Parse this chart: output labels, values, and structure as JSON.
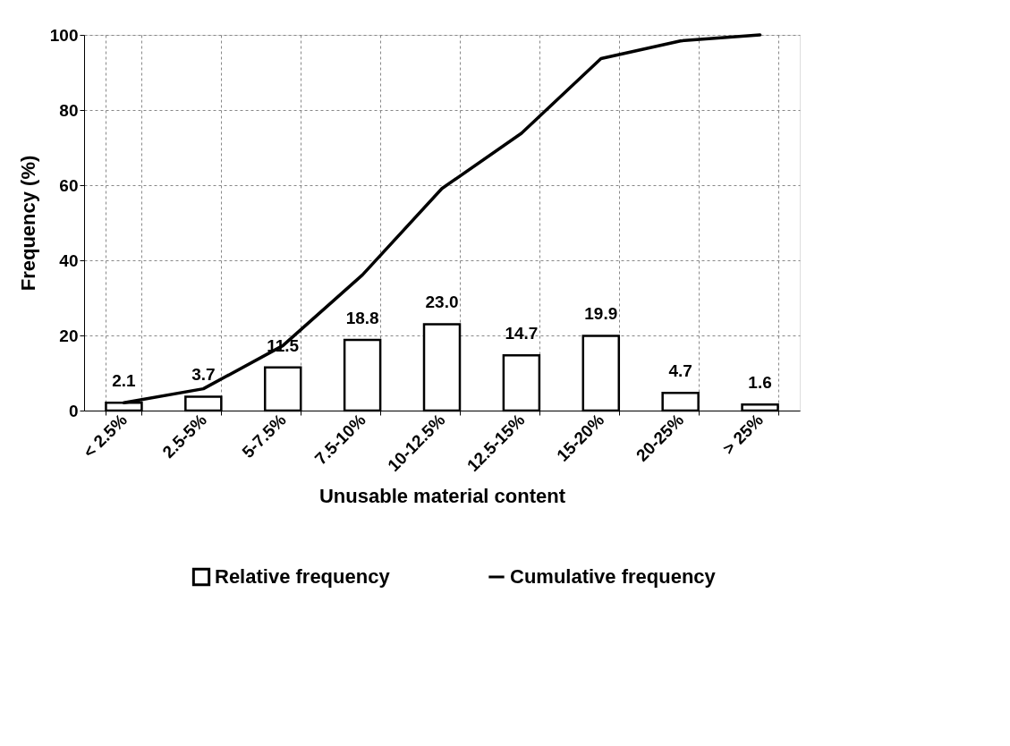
{
  "chart_data": {
    "type": "bar",
    "xlabel": "Unusable material content",
    "ylabel": "Frequency (%)",
    "categories": [
      "< 2.5%",
      "2.5-5%",
      "5-7.5%",
      "7.5-10%",
      "10-12.5%",
      "12.5-15%",
      "15-20%",
      "20-25%",
      "> 25%"
    ],
    "series": [
      {
        "name": "Relative frequency",
        "color": "#000000",
        "values": [
          2.1,
          3.7,
          11.5,
          18.8,
          23.0,
          14.7,
          19.9,
          4.7,
          1.6
        ],
        "value_labels": [
          "2.1",
          "3.7",
          "11.5",
          "18.8",
          "23.0",
          "14.7",
          "19.9",
          "4.7",
          "1.6"
        ]
      },
      {
        "name": "Cumulative frequency",
        "type": "line",
        "color": "#000000",
        "values": [
          2.1,
          5.8,
          17.3,
          36.1,
          59.1,
          73.8,
          93.7,
          98.4,
          100.0
        ]
      }
    ],
    "ylim": [
      0,
      100
    ],
    "yticks": [
      0,
      20,
      40,
      60,
      80,
      100
    ],
    "grid": true,
    "legend": "bottom"
  }
}
